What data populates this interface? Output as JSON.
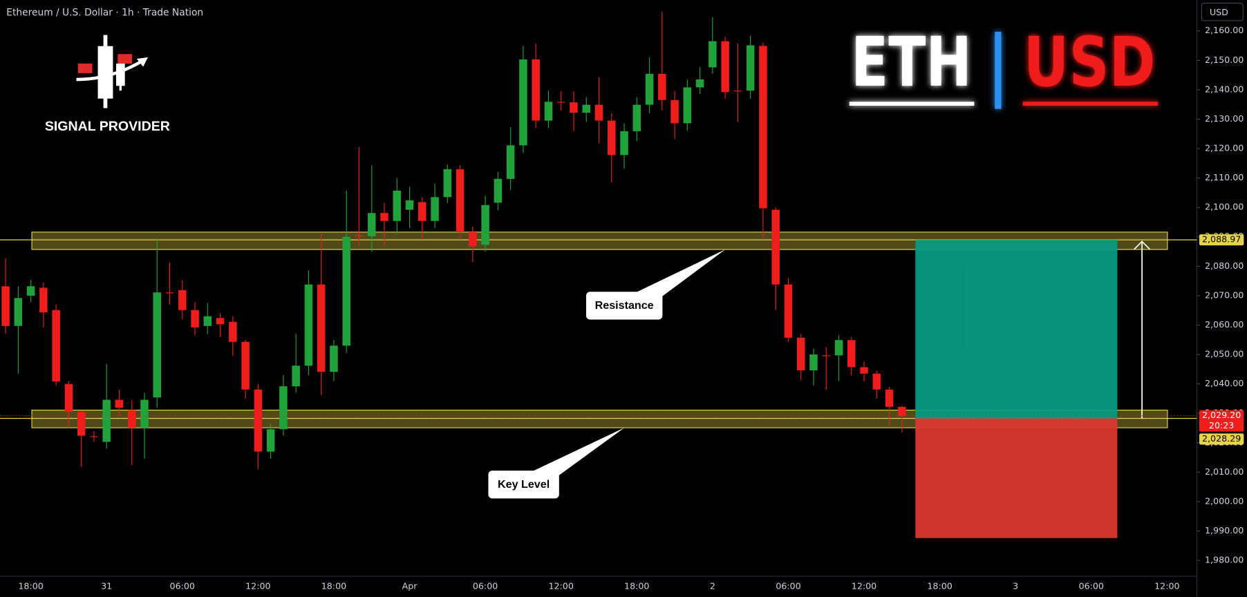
{
  "chart_data": {
    "type": "candlestick",
    "title": "Ethereum / U.S. Dollar · 1h · Trade Nation",
    "brand": "SIGNAL PROVIDER",
    "headline": {
      "base": "ETH",
      "quote": "USD"
    },
    "currency": "USD",
    "up_color": "#1fa33a",
    "down_color": "#f01d1d",
    "grid": false,
    "categories": [
      null,
      null,
      "18:00",
      null,
      null,
      null,
      null,
      null,
      "31",
      null,
      null,
      null,
      null,
      null,
      "06:00",
      null,
      null,
      null,
      null,
      null,
      "12:00",
      null,
      null,
      null,
      null,
      null,
      "18:00",
      null,
      null,
      null,
      null,
      null,
      "Apr",
      null,
      null,
      null,
      null,
      null,
      "06:00",
      null,
      null,
      null,
      null,
      null,
      "12:00",
      null,
      null,
      null,
      null,
      null,
      "18:00",
      null,
      null,
      null,
      null,
      null,
      "2",
      null,
      null,
      null,
      null,
      null,
      "06:00",
      null,
      null,
      null,
      null,
      null,
      "12:00",
      null,
      null,
      null,
      null,
      null,
      "18:00",
      null,
      null,
      null,
      null,
      null,
      "3",
      null,
      null,
      null,
      null,
      null,
      "06:00",
      null,
      null,
      null,
      null,
      null,
      "12:00"
    ],
    "open": [
      2073.2,
      2059.7,
      2070,
      2072.7,
      2065.1,
      2040,
      2030.5,
      2022.2,
      2020.3,
      2034.6,
      2031.1,
      2025.1,
      2035.4,
      2071.1,
      2071.9,
      2065.1,
      2059.7,
      2062.4,
      2061.1,
      2054.3,
      2038.1,
      2017,
      2024.6,
      2039.2,
      2046.2,
      2073.8,
      2044.1,
      2053,
      2090.5,
      2090.2,
      2098.1,
      2095.4,
      2099.2,
      2101.8,
      2095.4,
      2103.5,
      2113,
      2091.6,
      2087.3,
      2101.6,
      2109.7,
      2121.1,
      2150.3,
      2129.5,
      2135.9,
      2135.7,
      2132.2,
      2134.9,
      2129.5,
      2117.8,
      2125.9,
      2134.9,
      2145.4,
      2136.5,
      2128.6,
      2140.8,
      2147.6,
      2156.5,
      2139.7,
      2139.7,
      2154.9,
      2099.2,
      2073.8,
      2055.7,
      2044.6,
      2049.7,
      2049.7,
      2054.9,
      2045.7,
      2043.5,
      2038.1,
      2032.2,
      null,
      null,
      null,
      null,
      null,
      null,
      null,
      null,
      null,
      null,
      null,
      null,
      null,
      null,
      null,
      null,
      null,
      null,
      null,
      null,
      null
    ],
    "high": [
      2082.7,
      2073.2,
      2075.4,
      2074.5,
      2067,
      2041,
      2031,
      2024,
      2046.8,
      2038.1,
      2034.6,
      2037,
      2089.5,
      2081.4,
      2075.4,
      2067.8,
      2067.5,
      2064,
      2063,
      2055,
      2040,
      2026.5,
      2043,
      2057,
      2078.6,
      2090.8,
      2055,
      2105.7,
      2120.5,
      2114.3,
      2101.5,
      2110,
      2107,
      2103.5,
      2108,
      2114.6,
      2114.3,
      2093.5,
      2104,
      2112,
      2127.3,
      2154.9,
      2155.7,
      2139.7,
      2139.5,
      2139.5,
      2137.5,
      2144.3,
      2132,
      2128.6,
      2137.5,
      2151.1,
      2166.5,
      2139.5,
      2143.5,
      2147.6,
      2164.6,
      2158,
      2155.7,
      2158.4,
      2156,
      2100,
      2075.9,
      2057,
      2052,
      2052.5,
      2056.5,
      2056,
      2047.6,
      2044.5,
      2039,
      2032.5,
      null,
      null,
      null,
      null,
      null,
      null,
      null,
      null,
      null,
      null,
      null,
      null,
      null,
      null,
      null,
      null,
      null,
      null,
      null,
      null,
      null
    ],
    "low": [
      2057,
      2043.5,
      2067.8,
      2059.2,
      2039.5,
      2025.1,
      2011.9,
      2020.3,
      2018,
      2029.2,
      2012.4,
      2014.6,
      2031.9,
      2067,
      2062,
      2056.5,
      2057,
      2056,
      2049.5,
      2035,
      2011.1,
      2014.5,
      2022.5,
      2037,
      2043,
      2036.2,
      2041,
      2050.5,
      2087,
      2085,
      2087,
      2091,
      2093,
      2089,
      2093,
      2101.5,
      2089,
      2081.4,
      2085,
      2099,
      2106,
      2118.5,
      2127,
      2127,
      2133,
      2125.9,
      2129,
      2121.9,
      2108.4,
      2113.2,
      2122.5,
      2132,
      2133,
      2123.2,
      2126,
      2138.5,
      2145.5,
      2137,
      2129,
      2137,
      2089.5,
      2065.1,
      2054.3,
      2041.4,
      2039.5,
      2038,
      2041,
      2043,
      2040.8,
      2035,
      2025.9,
      2023.5,
      null,
      null,
      null,
      null,
      null,
      null,
      null,
      null,
      null,
      null,
      null,
      null,
      null,
      null,
      null,
      null,
      null,
      null,
      null,
      null,
      null
    ],
    "close": [
      2059.7,
      2069.2,
      2073.2,
      2064.3,
      2040.8,
      2030.5,
      2022.4,
      2022,
      2034.6,
      2031.9,
      2025.1,
      2034.6,
      2071.1,
      2070.8,
      2065.1,
      2059.2,
      2063,
      2060.3,
      2054.3,
      2038.1,
      2017,
      2024.6,
      2039.2,
      2046.2,
      2073.8,
      2044.1,
      2053,
      2090,
      2090.2,
      2098.1,
      2095.4,
      2105.7,
      2102.4,
      2095.4,
      2103.5,
      2113,
      2091.6,
      2086.8,
      2100.8,
      2109.7,
      2121.1,
      2150.3,
      2129.5,
      2135.9,
      2135.7,
      2132.2,
      2134.9,
      2129.5,
      2117.8,
      2125.9,
      2134.9,
      2145.4,
      2136.5,
      2128.6,
      2140.8,
      2143.5,
      2156.5,
      2139.2,
      2139.5,
      2155.1,
      2099.7,
      2073.8,
      2055.7,
      2044.6,
      2050,
      2049.5,
      2054.9,
      2045.7,
      2043.5,
      2038.1,
      2032.2,
      2029.2,
      null,
      null,
      null,
      null,
      null,
      null,
      null,
      null,
      null,
      null,
      null,
      null,
      null,
      null,
      null,
      null,
      null,
      null,
      null,
      null,
      null
    ],
    "ylim": [
      1974.6,
      2170.5
    ],
    "yticks": [
      {
        "value": 2160,
        "label": "2,160.00"
      },
      {
        "value": 2150,
        "label": "2,150.00"
      },
      {
        "value": 2140,
        "label": "2,140.00"
      },
      {
        "value": 2130,
        "label": "2,130.00"
      },
      {
        "value": 2120,
        "label": "2,120.00"
      },
      {
        "value": 2110,
        "label": "2,110.00"
      },
      {
        "value": 2100,
        "label": "2,100.00"
      },
      {
        "value": 2090,
        "label": "2,090.00"
      },
      {
        "value": 2080,
        "label": "2,080.00"
      },
      {
        "value": 2070,
        "label": "2,070.00"
      },
      {
        "value": 2060,
        "label": "2,060.00"
      },
      {
        "value": 2050,
        "label": "2,050.00"
      },
      {
        "value": 2040,
        "label": "2,040.00"
      },
      {
        "value": 2030,
        "label": "2,030.00"
      },
      {
        "value": 2020,
        "label": "2,020.00"
      },
      {
        "value": 2010,
        "label": "2,010.00"
      },
      {
        "value": 2000,
        "label": "2,000.00"
      },
      {
        "value": 1990,
        "label": "1,990.00"
      },
      {
        "value": 1980,
        "label": "1,980.00"
      }
    ],
    "zones": [
      {
        "name": "Resistance",
        "top": 2091.6,
        "bottom": 2085.7,
        "level": {
          "value": 2088.97,
          "label": "2,088.97"
        }
      },
      {
        "name": "Key Level",
        "top": 2031.1,
        "bottom": 2025.1,
        "level": {
          "value": 2028.29,
          "label": "2,028.29"
        }
      }
    ],
    "zone_color": "#e6d34a",
    "last_price": {
      "value": 2029.2,
      "label": "2,029.20",
      "countdown": "20:23"
    },
    "long_position": {
      "target": 2088.97,
      "entry": 2028.29,
      "stop": 1987.6,
      "profit_color": "#089981",
      "loss_color": "#d9392f"
    }
  }
}
